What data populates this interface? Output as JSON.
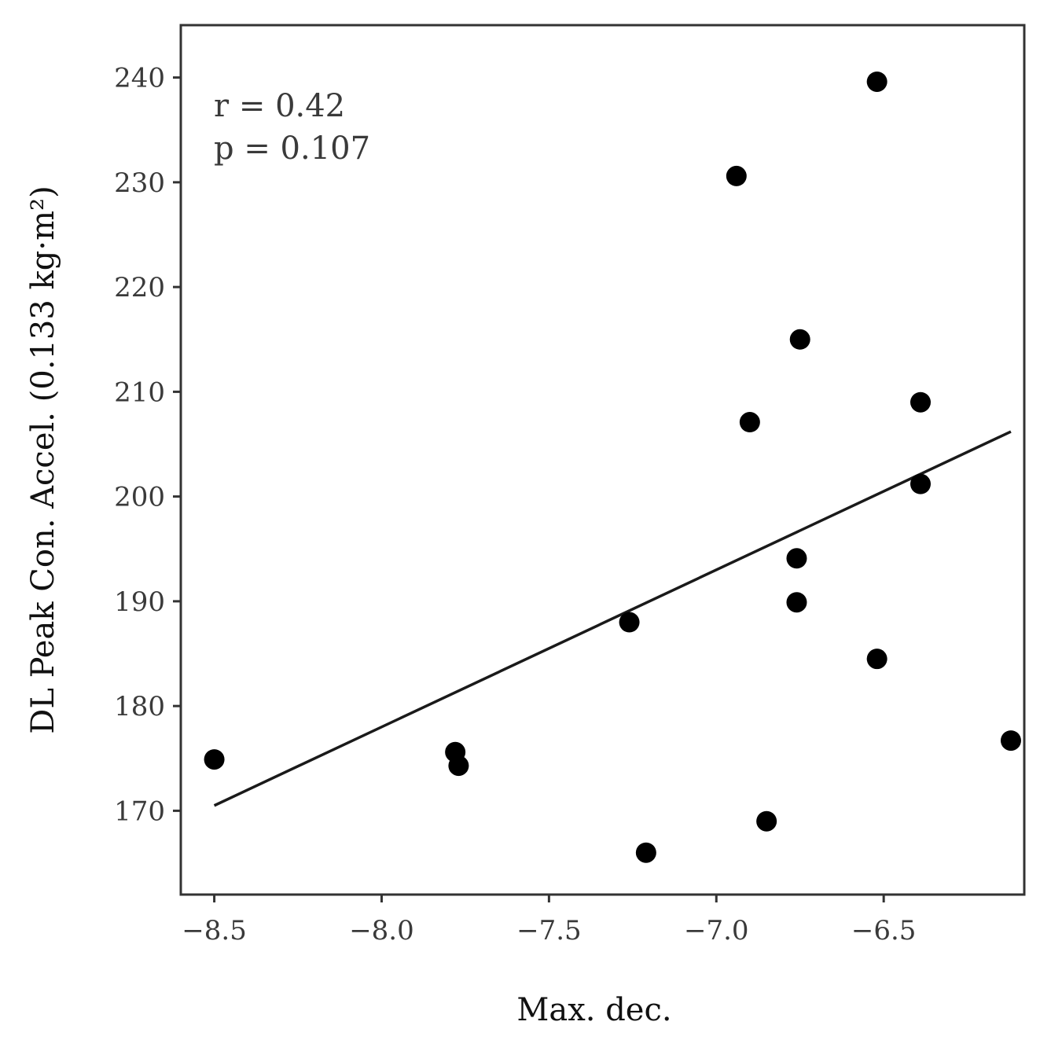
{
  "chart_data": {
    "type": "scatter",
    "xlabel": "Max. dec.",
    "ylabel": "DL Peak Con. Accel. (0.133 kg·m²)",
    "xlim": [
      -8.6,
      -6.08
    ],
    "ylim": [
      162,
      245
    ],
    "xticks": [
      -8.5,
      -8.0,
      -7.5,
      -7.0,
      -6.5
    ],
    "xtick_labels": [
      "−8.5",
      "−8.0",
      "−7.5",
      "−7.0",
      "−6.5"
    ],
    "yticks": [
      170,
      180,
      190,
      200,
      210,
      220,
      230,
      240
    ],
    "ytick_labels": [
      "170",
      "180",
      "190",
      "200",
      "210",
      "220",
      "230",
      "240"
    ],
    "grid": false,
    "points": [
      {
        "x": -8.5,
        "y": 174.9
      },
      {
        "x": -7.78,
        "y": 175.6
      },
      {
        "x": -7.77,
        "y": 174.3
      },
      {
        "x": -7.26,
        "y": 188.0
      },
      {
        "x": -7.21,
        "y": 166.0
      },
      {
        "x": -6.94,
        "y": 230.6
      },
      {
        "x": -6.9,
        "y": 207.1
      },
      {
        "x": -6.85,
        "y": 169.0
      },
      {
        "x": -6.76,
        "y": 194.1
      },
      {
        "x": -6.76,
        "y": 189.9
      },
      {
        "x": -6.75,
        "y": 215.0
      },
      {
        "x": -6.52,
        "y": 239.6
      },
      {
        "x": -6.52,
        "y": 184.5
      },
      {
        "x": -6.39,
        "y": 209.0
      },
      {
        "x": -6.39,
        "y": 201.2
      },
      {
        "x": -6.12,
        "y": 176.7
      }
    ],
    "trendline": {
      "x": [
        -8.5,
        -6.12
      ],
      "y": [
        170.5,
        206.2
      ]
    },
    "annotations": [
      "r = 0.42",
      "p = 0.107"
    ],
    "marker_color": "#000000",
    "line_color": "#1a1a1a"
  }
}
